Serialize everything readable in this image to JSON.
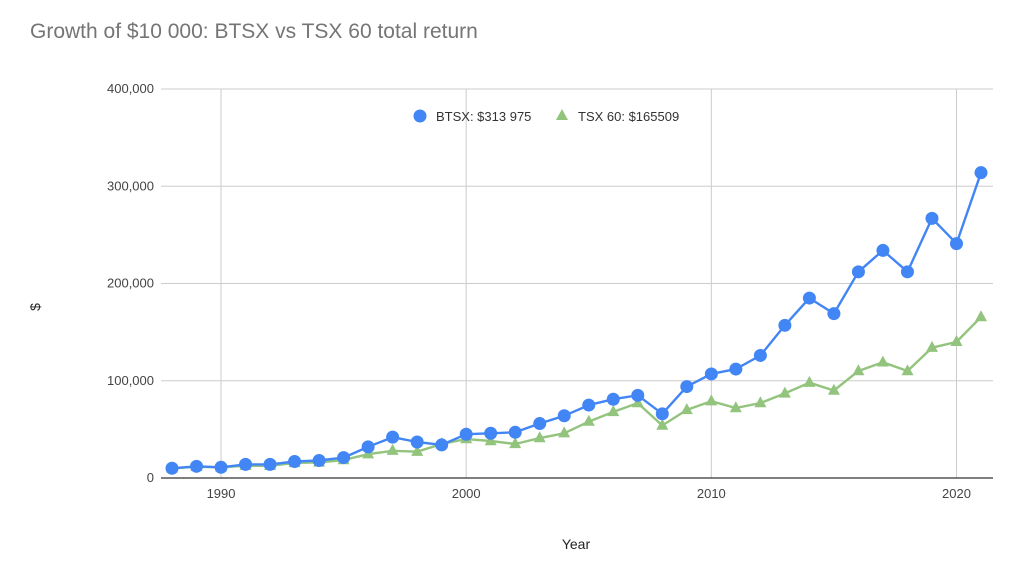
{
  "chart_data": {
    "type": "line",
    "title": "Growth of $10 000: BTSX vs TSX 60 total return",
    "xlabel": "Year",
    "ylabel": "$",
    "xlim": [
      1988,
      2021
    ],
    "ylim": [
      0,
      400000
    ],
    "x_ticks": [
      "1990",
      "2000",
      "2010",
      "2020"
    ],
    "y_ticks": [
      "0",
      "100,000",
      "200,000",
      "300,000",
      "400,000"
    ],
    "grid": true,
    "legend_position": "top-center",
    "x": [
      1988,
      1989,
      1990,
      1991,
      1992,
      1993,
      1994,
      1995,
      1996,
      1997,
      1998,
      1999,
      2000,
      2001,
      2002,
      2003,
      2004,
      2005,
      2006,
      2007,
      2008,
      2009,
      2010,
      2011,
      2012,
      2013,
      2014,
      2015,
      2016,
      2017,
      2018,
      2019,
      2020,
      2021
    ],
    "series": [
      {
        "name": "BTSX: $313 975",
        "color": "#4285f4",
        "marker": "circle",
        "values": [
          10000,
          12000,
          11000,
          14000,
          14000,
          17000,
          18000,
          21000,
          32000,
          42000,
          37000,
          34000,
          45000,
          46000,
          47000,
          56000,
          64000,
          75000,
          81000,
          85000,
          66000,
          94000,
          107000,
          112000,
          126000,
          157000,
          185000,
          169000,
          212000,
          234000,
          212000,
          267000,
          241000,
          313975
        ]
      },
      {
        "name": "TSX 60: $165509",
        "color": "#93c47d",
        "marker": "triangle",
        "values": [
          10000,
          11500,
          11000,
          12500,
          12500,
          15500,
          16000,
          18500,
          24500,
          28000,
          27000,
          35000,
          40000,
          38000,
          35000,
          41000,
          46000,
          58000,
          68000,
          77000,
          54000,
          70000,
          79000,
          72000,
          77000,
          87000,
          98000,
          90000,
          110000,
          119000,
          110000,
          134000,
          140000,
          165509
        ]
      }
    ]
  }
}
